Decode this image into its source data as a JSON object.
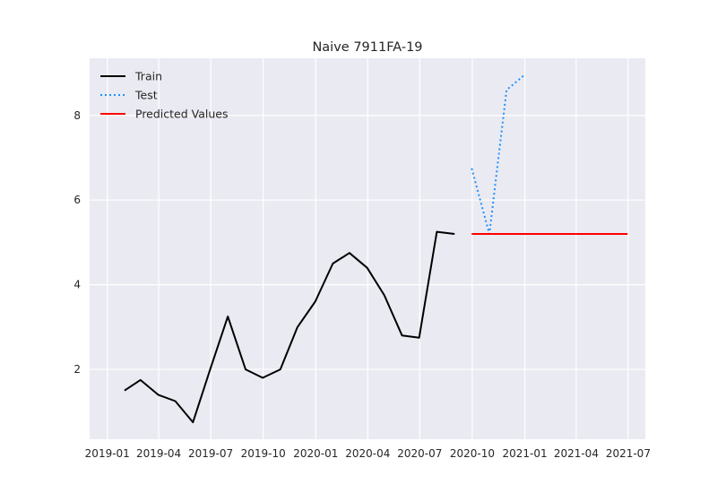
{
  "chart_data": {
    "type": "line",
    "title": "Naive 7911FA-19",
    "xlabel": "",
    "ylabel": "",
    "grid": true,
    "legend_position": "top-left",
    "xlim": [
      "2018-12-01",
      "2021-07-31"
    ],
    "ylim": [
      0.35,
      9.35
    ],
    "x_ticks": [
      "2019-01",
      "2019-04",
      "2019-07",
      "2019-10",
      "2020-01",
      "2020-04",
      "2020-07",
      "2020-10",
      "2021-01",
      "2021-04",
      "2021-07"
    ],
    "y_ticks": [
      2,
      4,
      6,
      8
    ],
    "series": [
      {
        "name": "Train",
        "color": "#000000",
        "style": "solid",
        "x": [
          "2019-01-31",
          "2019-02-28",
          "2019-03-31",
          "2019-04-30",
          "2019-05-31",
          "2019-06-30",
          "2019-07-31",
          "2019-08-31",
          "2019-09-30",
          "2019-10-31",
          "2019-11-30",
          "2019-12-31",
          "2020-01-31",
          "2020-02-29",
          "2020-03-31",
          "2020-04-30",
          "2020-05-31",
          "2020-06-30",
          "2020-07-31",
          "2020-08-31"
        ],
        "y": [
          1.5,
          1.75,
          1.4,
          1.25,
          0.75,
          2.0,
          3.25,
          2.0,
          1.8,
          2.0,
          3.0,
          3.6,
          4.5,
          4.75,
          4.4,
          3.75,
          2.8,
          2.75,
          5.25,
          5.2
        ]
      },
      {
        "name": "Test",
        "color": "#1e90ff",
        "style": "dotted",
        "x": [
          "2020-09-30",
          "2020-10-31",
          "2020-11-30",
          "2020-12-31"
        ],
        "y": [
          6.75,
          5.2,
          8.6,
          8.95
        ]
      },
      {
        "name": "Predicted Values",
        "color": "#ff0000",
        "style": "solid",
        "x": [
          "2020-09-30",
          "2021-06-30"
        ],
        "y": [
          5.2,
          5.2
        ]
      }
    ]
  }
}
